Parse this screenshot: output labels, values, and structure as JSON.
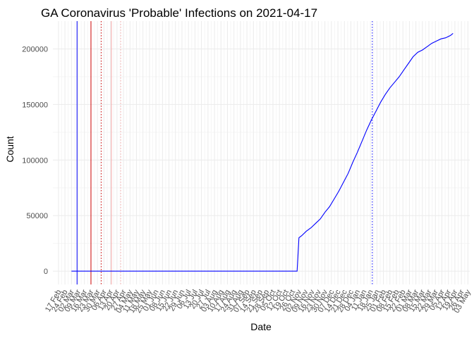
{
  "chart_data": {
    "type": "line",
    "title": "GA Coronavirus 'Probable' Infections on 2021-04-17",
    "xlabel": "Date",
    "ylabel": "Count",
    "xlim": [
      "2020-02-11",
      "2021-05-05"
    ],
    "ylim": [
      -12000,
      225000
    ],
    "y_ticks": [
      0,
      50000,
      100000,
      150000,
      200000
    ],
    "x_ticks": [
      "2020-02-17",
      "2020-02-24",
      "2020-03-02",
      "2020-03-09",
      "2020-03-16",
      "2020-03-23",
      "2020-03-30",
      "2020-04-06",
      "2020-04-13",
      "2020-04-20",
      "2020-04-27",
      "2020-05-04",
      "2020-05-11",
      "2020-05-18",
      "2020-05-25",
      "2020-06-01",
      "2020-06-08",
      "2020-06-15",
      "2020-06-22",
      "2020-06-29",
      "2020-07-06",
      "2020-07-13",
      "2020-07-20",
      "2020-07-27",
      "2020-08-03",
      "2020-08-10",
      "2020-08-17",
      "2020-08-24",
      "2020-08-31",
      "2020-09-07",
      "2020-09-14",
      "2020-09-21",
      "2020-09-28",
      "2020-10-05",
      "2020-10-12",
      "2020-10-19",
      "2020-10-26",
      "2020-11-02",
      "2020-11-09",
      "2020-11-16",
      "2020-11-23",
      "2020-11-30",
      "2020-12-07",
      "2020-12-14",
      "2020-12-21",
      "2020-12-28",
      "2021-01-04",
      "2021-01-11",
      "2021-01-18",
      "2021-01-25",
      "2021-02-01",
      "2021-02-08",
      "2021-02-15",
      "2021-02-22",
      "2021-03-01",
      "2021-03-08",
      "2021-03-15",
      "2021-03-22",
      "2021-03-29",
      "2021-04-05",
      "2021-04-12",
      "2021-04-19",
      "2021-04-26",
      "2021-05-03"
    ],
    "x_tick_labels": [
      "17 Feb",
      "24 Feb",
      "02 Mar",
      "09 Mar",
      "16 Mar",
      "23 Mar",
      "30 Mar",
      "06 Apr",
      "13 Apr",
      "20 Apr",
      "27 Apr",
      "04 May",
      "11 May",
      "18 May",
      "25 May",
      "01 Jun",
      "08 Jun",
      "15 Jun",
      "22 Jun",
      "29 Jun",
      "06 Jul",
      "13 Jul",
      "20 Jul",
      "27 Jul",
      "03 Aug",
      "10 Aug",
      "17 Aug",
      "24 Aug",
      "31 Aug",
      "07 Sep",
      "14 Sep",
      "21 Sep",
      "28 Sep",
      "05 Oct",
      "12 Oct",
      "19 Oct",
      "26 Oct",
      "02 Nov",
      "09 Nov",
      "16 Nov",
      "23 Nov",
      "30 Nov",
      "07 Dec",
      "14 Dec",
      "21 Dec",
      "28 Dec",
      "04 Jan",
      "11 Jan",
      "18 Jan",
      "25 Jan",
      "01 Feb",
      "08 Feb",
      "15 Feb",
      "22 Feb",
      "01 Mar",
      "08 Mar",
      "15 Mar",
      "22 Mar",
      "29 Mar",
      "05 Apr",
      "12 Apr",
      "19 Apr",
      "26 Apr",
      "03 May"
    ],
    "grid": true,
    "series": [
      {
        "color": "#0000ff",
        "x": [
          "2020-03-02",
          "2020-10-31",
          "2020-11-01",
          "2020-11-02",
          "2020-11-05",
          "2020-11-10",
          "2020-11-15",
          "2020-11-20",
          "2020-11-25",
          "2020-11-30",
          "2020-12-05",
          "2020-12-10",
          "2020-12-15",
          "2020-12-20",
          "2020-12-25",
          "2020-12-30",
          "2021-01-04",
          "2021-01-09",
          "2021-01-14",
          "2021-01-19",
          "2021-01-24",
          "2021-01-29",
          "2021-02-03",
          "2021-02-08",
          "2021-02-13",
          "2021-02-18",
          "2021-02-23",
          "2021-02-28",
          "2021-03-05",
          "2021-03-10",
          "2021-03-15",
          "2021-03-20",
          "2021-03-25",
          "2021-03-30",
          "2021-04-04",
          "2021-04-09",
          "2021-04-14",
          "2021-04-17"
        ],
        "values": [
          0,
          0,
          15000,
          30000,
          32000,
          36000,
          39000,
          43000,
          47000,
          53000,
          58000,
          65000,
          72000,
          80000,
          88000,
          98000,
          107000,
          117000,
          127000,
          136000,
          144000,
          152000,
          159000,
          165000,
          170000,
          175000,
          181000,
          187000,
          193000,
          197000,
          199000,
          202000,
          205000,
          207000,
          209000,
          210000,
          212000,
          214000
        ]
      }
    ],
    "reference_lines": [
      {
        "x": "2020-03-08",
        "color": "#0000ff",
        "style": "solid"
      },
      {
        "x": "2020-03-23",
        "color": "#cc0000",
        "style": "solid"
      },
      {
        "x": "2020-04-03",
        "color": "#cc0000",
        "style": "dotted"
      },
      {
        "x": "2020-04-14",
        "color": "#f4a6a6",
        "style": "solid"
      },
      {
        "x": "2020-04-24",
        "color": "#f4a6a6",
        "style": "dotted"
      },
      {
        "x": "2021-01-20",
        "color": "#0000ff",
        "style": "dotted"
      }
    ]
  }
}
